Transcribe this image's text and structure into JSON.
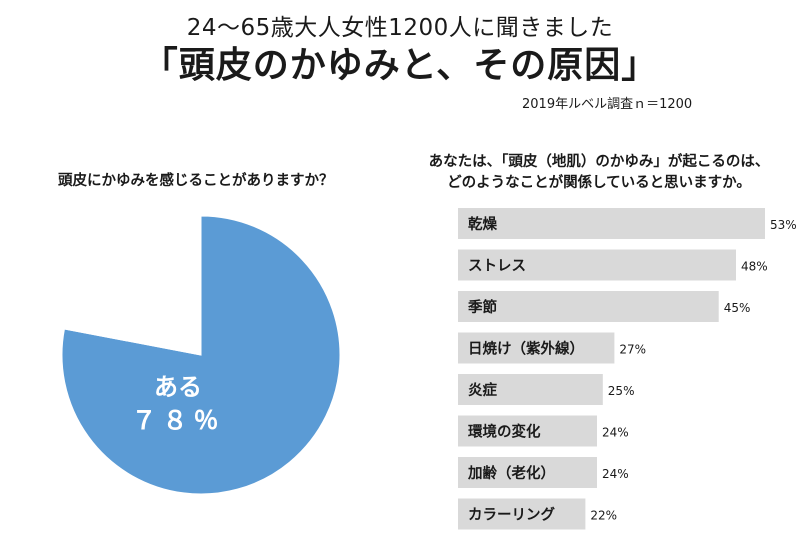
{
  "header": {
    "subtitle": "24～65歳大人女性1200人に聞きました",
    "title": "「頭皮のかゆみと、その原因」",
    "survey_note": "2019年ルベル調査ｎ＝1200"
  },
  "colors": {
    "pie_fill": "#5B9BD5",
    "bar_fill": "#D9D9D9",
    "pie_label": "#ffffff"
  },
  "chart_data": [
    {
      "type": "pie",
      "title": "頭皮にかゆみを感じることがありますか？",
      "slices": [
        {
          "label": "ある",
          "value": 78,
          "value_label": "７８％",
          "color": "#5B9BD5"
        },
        {
          "label": "",
          "value": 22,
          "value_label": "",
          "color": "#ffffff"
        }
      ]
    },
    {
      "type": "bar",
      "orientation": "horizontal",
      "title_lines": [
        "あなたは、「頭皮（地肌）のかゆみ」が起こるのは、",
        "どのようなことが関係していると思いますか。"
      ],
      "categories": [
        "乾燥",
        "ストレス",
        "季節",
        "日焼け（紫外線）",
        "炎症",
        "環境の変化",
        "加齢（老化）",
        "カラーリング"
      ],
      "values": [
        53,
        48,
        45,
        27,
        25,
        24,
        24,
        22
      ],
      "value_labels": [
        "53%",
        "48%",
        "45%",
        "27%",
        "25%",
        "24%",
        "24%",
        "22%"
      ],
      "unit": "%"
    }
  ]
}
